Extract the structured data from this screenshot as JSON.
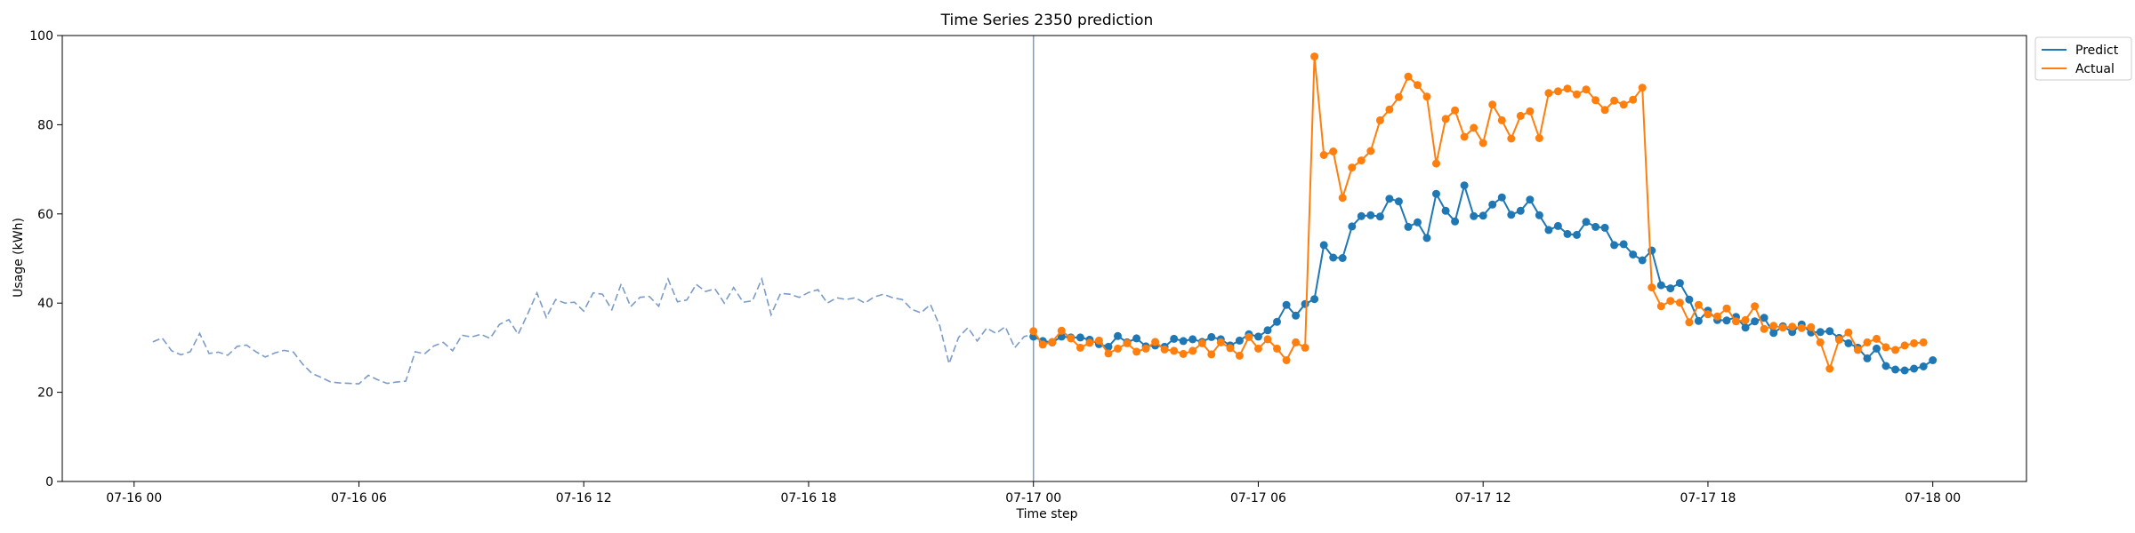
{
  "chart_data": {
    "type": "line",
    "title": "Time Series 2350 prediction",
    "xlabel": "Time step",
    "ylabel": "Usage (kWh)",
    "ylim": [
      0,
      100
    ],
    "y_ticks": [
      0,
      20,
      40,
      60,
      80,
      100
    ],
    "x_ticks": [
      "07-16 00",
      "07-16 06",
      "07-16 12",
      "07-16 18",
      "07-17 00",
      "07-17 06",
      "07-17 12",
      "07-17 18",
      "07-18 00"
    ],
    "x_tick_times": [
      "2024-07-16 00:00",
      "2024-07-16 06:00",
      "2024-07-16 12:00",
      "2024-07-16 18:00",
      "2024-07-17 00:00",
      "2024-07-17 06:00",
      "2024-07-17 12:00",
      "2024-07-17 18:00",
      "2024-07-18 00:00"
    ],
    "xlim": [
      "2024-07-15 22:05",
      "2024-07-18 02:30"
    ],
    "vertical_line_at": "2024-07-17 00:00",
    "legend_position": "outside-top-right",
    "grid": false,
    "history": {
      "start": "2024-07-16 00:30",
      "step_minutes": 15,
      "style": "dashed",
      "color": "#7b9bc8",
      "values": [
        31.3,
        32.2,
        29.3,
        28.4,
        29.1,
        33.2,
        28.7,
        29.0,
        28.3,
        30.3,
        30.6,
        29.1,
        27.9,
        28.8,
        29.4,
        29.0,
        26.3,
        24.2,
        23.3,
        22.3,
        22.1,
        22.0,
        21.9,
        23.8,
        22.8,
        22.0,
        22.3,
        22.5,
        29.1,
        28.6,
        30.4,
        31.2,
        29.3,
        32.8,
        32.4,
        33.0,
        32.1,
        35.2,
        36.3,
        33.0,
        37.5,
        42.3,
        36.8,
        40.8,
        40.0,
        40.2,
        38.2,
        42.3,
        42.0,
        38.5,
        44.3,
        39.2,
        41.3,
        41.5,
        39.3,
        45.4,
        40.3,
        40.7,
        44.2,
        42.6,
        43.2,
        40.0,
        43.5,
        40.2,
        40.5,
        45.4,
        37.4,
        42.2,
        42.0,
        41.3,
        42.4,
        43.0,
        40.0,
        41.2,
        40.8,
        41.2,
        40.0,
        41.4,
        42.0,
        41.2,
        40.8,
        38.6,
        37.8,
        39.7,
        34.9,
        26.4,
        32.3,
        34.5,
        31.5,
        34.4,
        33.2,
        34.7,
        30.0,
        32.5,
        33.0
      ]
    },
    "forecast_start": "2024-07-17 00:00",
    "forecast_step_minutes": 15,
    "series": [
      {
        "name": "Predict",
        "color": "#1f77b4",
        "values": [
          32.5,
          31.5,
          31.2,
          32.5,
          32.3,
          32.3,
          31.8,
          30.8,
          30.2,
          32.6,
          31.2,
          32.1,
          30.3,
          30.5,
          30.2,
          32.0,
          31.5,
          31.9,
          31.3,
          32.4,
          31.9,
          30.5,
          31.6,
          33.0,
          32.5,
          33.9,
          35.8,
          39.6,
          37.2,
          39.8,
          40.9,
          53.0,
          50.2,
          50.1,
          57.2,
          59.5,
          59.7,
          59.4,
          63.4,
          62.8,
          57.1,
          58.1,
          54.6,
          64.5,
          60.7,
          58.3,
          66.4,
          59.5,
          59.6,
          62.1,
          63.7,
          59.8,
          60.7,
          63.2,
          59.7,
          56.4,
          57.3,
          55.5,
          55.3,
          58.2,
          57.1,
          56.9,
          53.0,
          53.2,
          50.9,
          49.6,
          51.8,
          44.0,
          43.3,
          44.5,
          40.8,
          36.0,
          38.3,
          36.2,
          36.1,
          36.9,
          34.5,
          35.9,
          36.7,
          33.3,
          34.8,
          33.5,
          35.2,
          33.4,
          33.5,
          33.7,
          32.2,
          31.0,
          30.0,
          27.6,
          29.8,
          25.9,
          25.1,
          24.9,
          25.3,
          25.8,
          27.2
        ]
      },
      {
        "name": "Actual",
        "color": "#ff7f0e",
        "values": [
          33.7,
          30.7,
          31.3,
          33.8,
          32.1,
          30.0,
          31.1,
          31.6,
          28.7,
          29.8,
          31.0,
          29.1,
          29.8,
          31.3,
          29.6,
          29.3,
          28.6,
          29.3,
          31.0,
          28.5,
          31.2,
          29.9,
          28.2,
          32.4,
          29.8,
          31.9,
          29.8,
          27.2,
          31.2,
          30.0,
          95.3,
          73.2,
          74.0,
          63.6,
          70.4,
          72.0,
          74.1,
          81.0,
          83.4,
          86.2,
          90.8,
          88.9,
          86.3,
          71.3,
          81.3,
          83.2,
          77.3,
          79.3,
          75.9,
          84.5,
          81.0,
          76.9,
          82.0,
          83.0,
          77.0,
          87.1,
          87.5,
          88.1,
          86.8,
          87.9,
          85.5,
          83.3,
          85.4,
          84.5,
          85.6,
          88.3,
          43.5,
          39.3,
          40.5,
          40.1,
          35.7,
          39.6,
          37.5,
          37.0,
          38.8,
          35.9,
          36.2,
          39.3,
          34.2,
          34.9,
          34.5,
          34.7,
          34.4,
          34.6,
          31.2,
          25.3,
          31.8,
          33.4,
          29.5,
          31.2,
          32.0,
          30.1,
          29.5,
          30.5,
          31.0,
          31.2
        ]
      }
    ]
  }
}
